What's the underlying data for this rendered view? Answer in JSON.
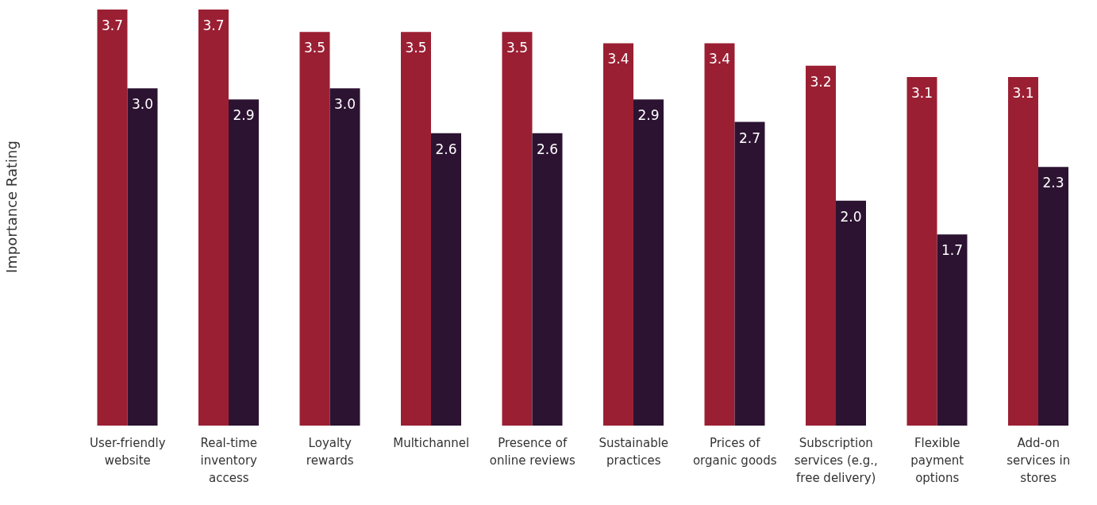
{
  "chart_data": {
    "type": "bar",
    "ylabel": "Importance Rating",
    "categories": [
      "User-friendly website",
      "Real-time inventory access",
      "Loyalty rewards",
      "Multichannel",
      "Presence of online reviews",
      "Sustainable practices",
      "Prices of organic goods",
      "Subscription services (e.g., free delivery)",
      "Flexible payment options",
      "Add-on services in stores"
    ],
    "series": [
      {
        "color": "#9b1f33",
        "values": [
          3.7,
          3.7,
          3.5,
          3.5,
          3.5,
          3.4,
          3.4,
          3.2,
          3.1,
          3.1
        ],
        "value_labels": [
          "3.7",
          "3.7",
          "3.5",
          "3.5",
          "3.5",
          "3.4",
          "3.4",
          "3.2",
          "3.1",
          "3.1"
        ]
      },
      {
        "color": "#2c1331",
        "values": [
          3.0,
          2.9,
          3.0,
          2.6,
          2.6,
          2.9,
          2.7,
          2.0,
          1.7,
          2.3
        ],
        "value_labels": [
          "3.0",
          "2.9",
          "3.0",
          "2.6",
          "2.6",
          "2.9",
          "2.7",
          "2.0",
          "1.7",
          "2.3"
        ]
      }
    ],
    "grid": false,
    "legend": false
  }
}
